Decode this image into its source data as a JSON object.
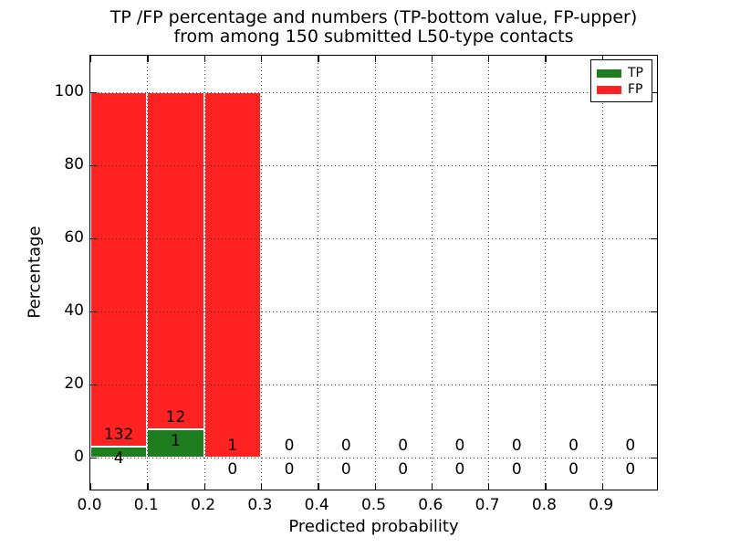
{
  "figure": {
    "title_line1": "TP /FP percentage and numbers (TP-bottom value, FP-upper)",
    "title_line2": "from among 150 submitted L50-type contacts"
  },
  "chart_data": {
    "type": "bar",
    "stacked": true,
    "title": "TP /FP percentage and numbers (TP-bottom value, FP-upper)\nfrom among 150 submitted L50-type contacts",
    "xlabel": "Predicted probability",
    "ylabel": "Percentage",
    "x_tick_labels": [
      "0.0",
      "0.1",
      "0.2",
      "0.3",
      "0.4",
      "0.5",
      "0.6",
      "0.7",
      "0.8",
      "0.9"
    ],
    "y_tick_values": [
      0,
      20,
      40,
      60,
      80,
      100
    ],
    "xlim": [
      0.0,
      1.0
    ],
    "ylim": [
      -9.25,
      110.25
    ],
    "grid": "dotted",
    "bin_width": 0.1,
    "categories": [
      "0.0-0.1",
      "0.1-0.2",
      "0.2-0.3",
      "0.3-0.4",
      "0.4-0.5",
      "0.5-0.6",
      "0.6-0.7",
      "0.7-0.8",
      "0.8-0.9",
      "0.9-1.0"
    ],
    "series": [
      {
        "name": "TP",
        "color": "#1E7D1E",
        "counts": [
          4,
          1,
          0,
          0,
          0,
          0,
          0,
          0,
          0,
          0
        ],
        "pct": [
          2.94,
          7.69,
          0,
          0,
          0,
          0,
          0,
          0,
          0,
          0
        ]
      },
      {
        "name": "FP",
        "color": "#FF2222",
        "counts": [
          132,
          12,
          1,
          0,
          0,
          0,
          0,
          0,
          0,
          0
        ],
        "pct": [
          97.06,
          92.31,
          100,
          0,
          0,
          0,
          0,
          0,
          0,
          0
        ]
      }
    ],
    "legend": {
      "position": "upper-right",
      "entries": [
        {
          "label": "TP",
          "color": "#1E7D1E"
        },
        {
          "label": "FP",
          "color": "#FF2222"
        }
      ]
    }
  }
}
